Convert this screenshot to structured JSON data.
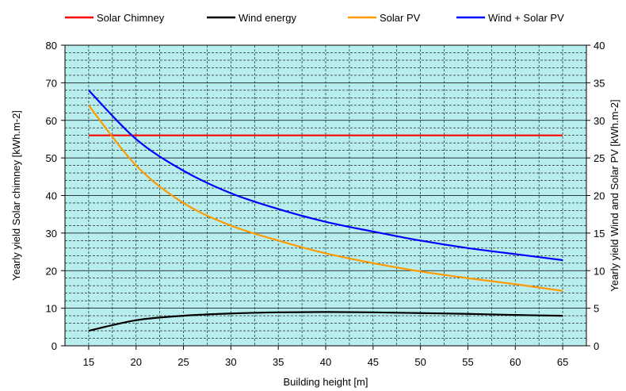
{
  "chart_data": {
    "type": "line",
    "x": [
      15,
      20,
      25,
      30,
      35,
      40,
      45,
      50,
      55,
      60,
      65
    ],
    "xlabel": "Building height [m]",
    "ylabel_left": "Yearly yield Solar chimney [kWh.m-2]",
    "ylabel_right": "Yearly yield Wind and Solar PV [kWh.m-2]",
    "xlim": [
      12.5,
      67.5
    ],
    "ylim_left": [
      0,
      80
    ],
    "ylim_right": [
      0,
      40
    ],
    "x_ticks": [
      15,
      20,
      25,
      30,
      35,
      40,
      45,
      50,
      55,
      60,
      65
    ],
    "y_ticks_left": [
      0,
      10,
      20,
      30,
      40,
      50,
      60,
      70,
      80
    ],
    "y_ticks_right": [
      0,
      5,
      10,
      15,
      20,
      25,
      30,
      35,
      40
    ],
    "grid": true,
    "legend_position": "top",
    "background_color": "#b8eeee",
    "series": [
      {
        "name": "Solar Chimney",
        "axis": "left",
        "color": "#ff0000",
        "values": [
          56,
          56,
          56,
          56,
          56,
          56,
          56,
          56,
          56,
          56,
          56
        ]
      },
      {
        "name": "Wind energy",
        "axis": "right",
        "color": "#000000",
        "values": [
          2,
          3.4,
          4,
          4.3,
          4.45,
          4.5,
          4.45,
          4.35,
          4.25,
          4.1,
          4
        ]
      },
      {
        "name": "Solar PV",
        "axis": "right",
        "color": "#ff9900",
        "values": [
          32,
          24,
          19,
          16,
          14,
          12.3,
          11,
          9.9,
          9,
          8.2,
          7.3
        ]
      },
      {
        "name": "Wind + Solar PV",
        "axis": "right",
        "color": "#0000ff",
        "values": [
          34,
          27.5,
          23.3,
          20.3,
          18.2,
          16.5,
          15.2,
          14,
          13,
          12.2,
          11.4
        ]
      }
    ]
  }
}
